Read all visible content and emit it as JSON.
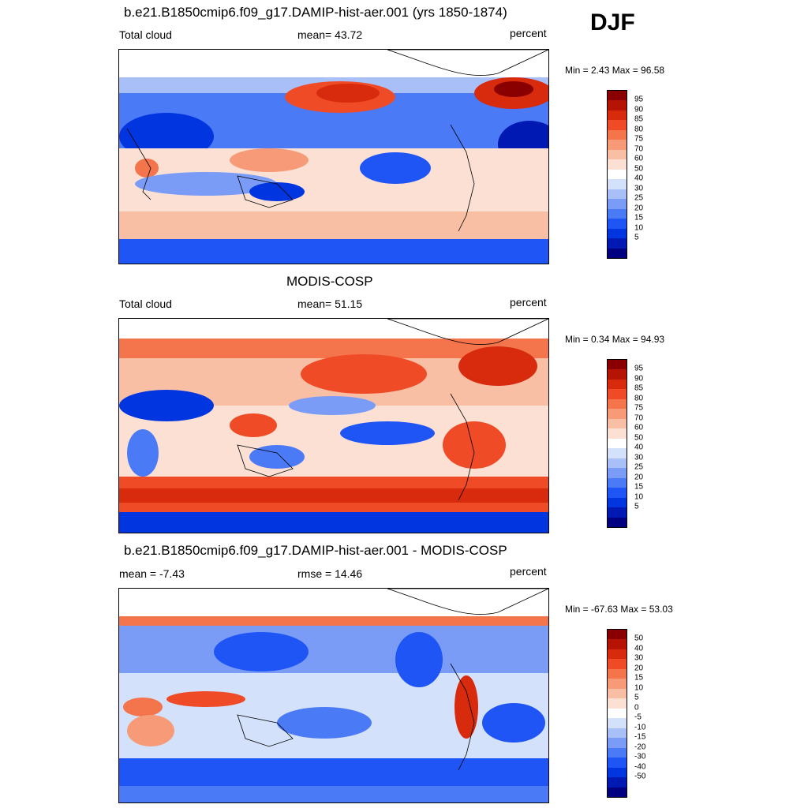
{
  "season": "DJF",
  "colors": {
    "abs_scale": [
      "#000080",
      "#0019b3",
      "#0035e0",
      "#1f55f5",
      "#4b7af7",
      "#7a9cf7",
      "#a8bff7",
      "#d3e1fa",
      "#ffffff",
      "#fbe0d3",
      "#f9bfa5",
      "#f79a78",
      "#f4744c",
      "#ef4b26",
      "#d82a0c",
      "#b51303",
      "#8a0000"
    ],
    "diff_scale": [
      "#000080",
      "#0019b3",
      "#0035e0",
      "#1f55f5",
      "#4b7af7",
      "#7a9cf7",
      "#a8bff7",
      "#d3e1fa",
      "#ffffff",
      "#fbe0d3",
      "#f9bfa5",
      "#f79a78",
      "#f4744c",
      "#ef4b26",
      "#d82a0c",
      "#b51303",
      "#8a0000"
    ]
  },
  "panels": [
    {
      "title": "b.e21.B1850cmip6.f09_g17.DAMIP-hist-aer.001 (yrs 1850-1874)",
      "left_label": "Total cloud",
      "center_label": "mean=  43.72",
      "right_label": "percent",
      "minmax": "Min =   2.43 Max =  96.58",
      "levels": [
        "95",
        "90",
        "85",
        "80",
        "75",
        "70",
        "60",
        "50",
        "40",
        "30",
        "25",
        "20",
        "15",
        "10",
        "5"
      ]
    },
    {
      "title": "MODIS-COSP",
      "left_label": "Total cloud",
      "center_label": "mean=  51.15",
      "right_label": "percent",
      "minmax": "Min =   0.34 Max =  94.93",
      "levels": [
        "95",
        "90",
        "85",
        "80",
        "75",
        "70",
        "60",
        "50",
        "40",
        "30",
        "25",
        "20",
        "15",
        "10",
        "5"
      ]
    },
    {
      "title": "b.e21.B1850cmip6.f09_g17.DAMIP-hist-aer.001 - MODIS-COSP",
      "left_label": "mean =  -7.43",
      "center_label": "rmse =  14.46",
      "right_label": "percent",
      "minmax": "Min = -67.63 Max =  53.03",
      "levels": [
        "50",
        "40",
        "30",
        "20",
        "15",
        "10",
        "5",
        "0",
        "-5",
        "-10",
        "-15",
        "-20",
        "-30",
        "-40",
        "-50"
      ]
    }
  ],
  "chart_data": [
    {
      "type": "heatmap",
      "title": "b.e21.B1850cmip6.f09_g17.DAMIP-hist-aer.001 (yrs 1850-1874)",
      "variable": "Total cloud",
      "units": "percent",
      "mean": 43.72,
      "min": 2.43,
      "max": 96.58,
      "contour_levels": [
        5,
        10,
        15,
        20,
        25,
        30,
        40,
        50,
        60,
        70,
        75,
        80,
        85,
        90,
        95
      ]
    },
    {
      "type": "heatmap",
      "title": "MODIS-COSP",
      "variable": "Total cloud",
      "units": "percent",
      "mean": 51.15,
      "min": 0.34,
      "max": 94.93,
      "contour_levels": [
        5,
        10,
        15,
        20,
        25,
        30,
        40,
        50,
        60,
        70,
        75,
        80,
        85,
        90,
        95
      ]
    },
    {
      "type": "heatmap",
      "title": "b.e21.B1850cmip6.f09_g17.DAMIP-hist-aer.001 - MODIS-COSP",
      "units": "percent",
      "mean": -7.43,
      "rmse": 14.46,
      "min": -67.63,
      "max": 53.03,
      "contour_levels": [
        -50,
        -40,
        -30,
        -20,
        -15,
        -10,
        -5,
        0,
        5,
        10,
        15,
        20,
        30,
        40,
        50
      ]
    }
  ]
}
